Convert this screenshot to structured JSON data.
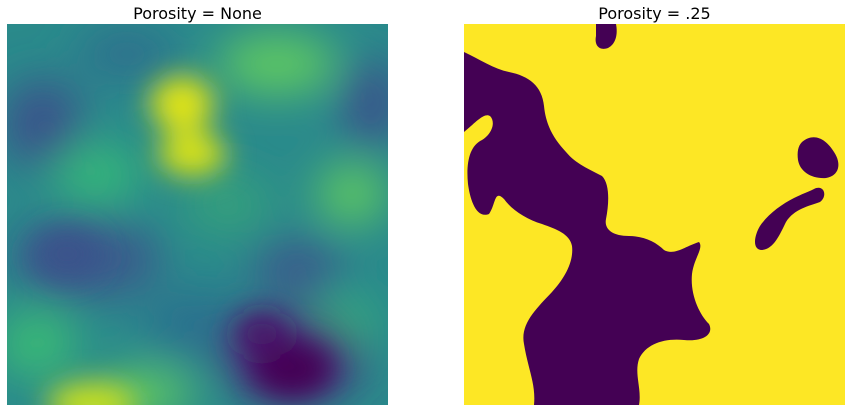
{
  "figure": {
    "panels": [
      {
        "title": "Porosity = None",
        "colormap": "viridis"
      },
      {
        "title": "Porosity = .25",
        "colormap": "viridis-binary"
      }
    ]
  },
  "colors": {
    "viridis_dark": "#440154",
    "viridis_blue": "#3b528b",
    "viridis_teal": "#21918c",
    "viridis_green": "#5ec962",
    "viridis_yellow": "#fde725"
  }
}
